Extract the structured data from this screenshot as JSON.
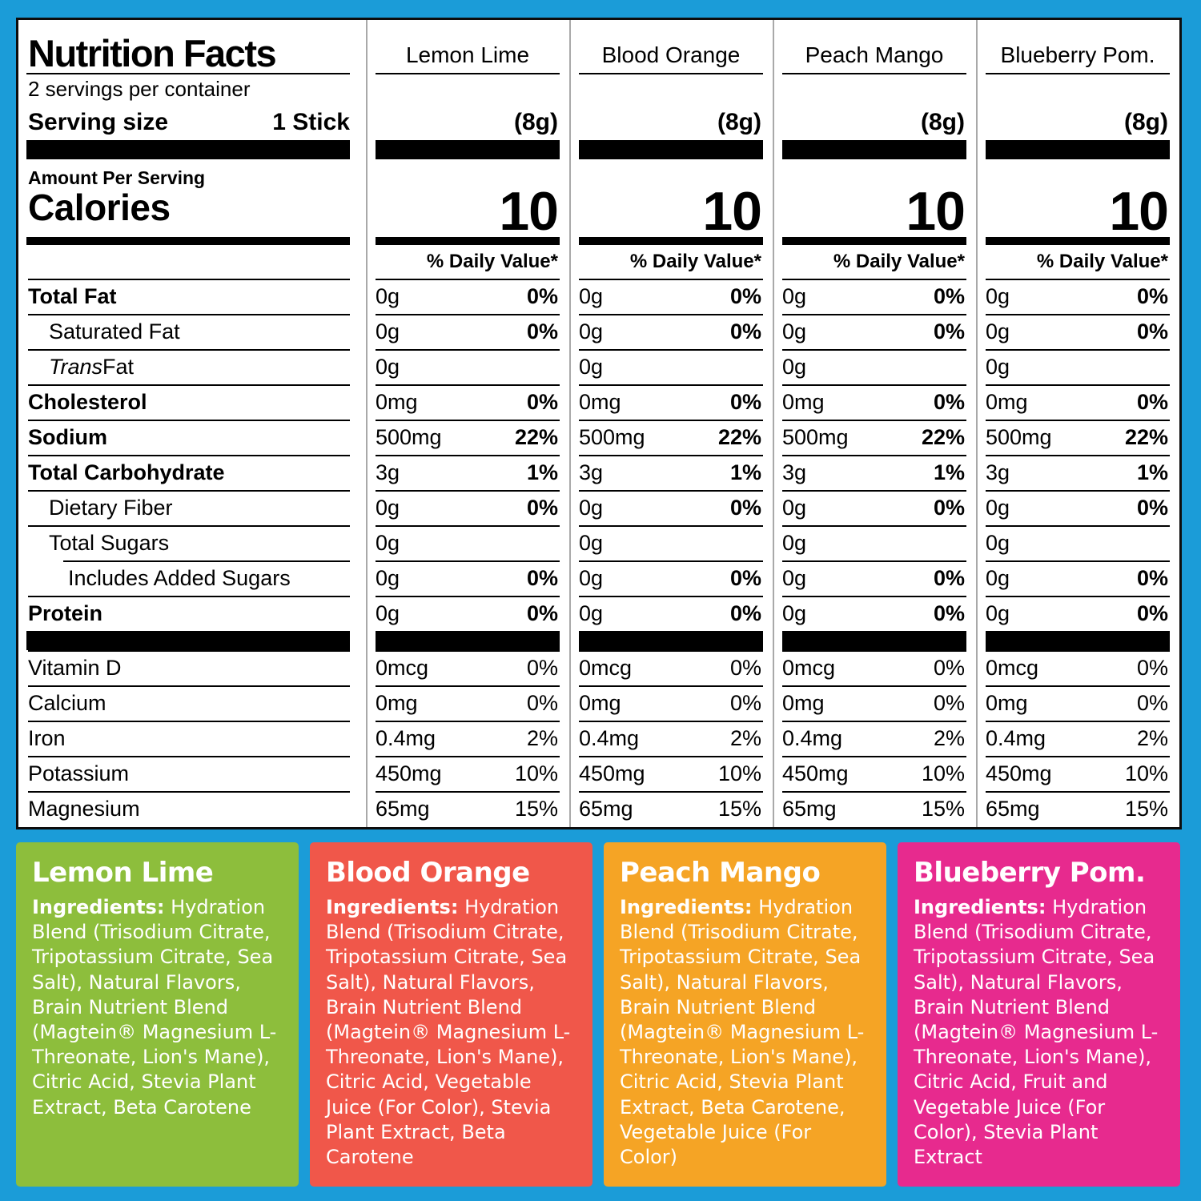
{
  "frame_color": "#1B9CD8",
  "nutrition": {
    "title": "Nutrition Facts",
    "servings_per_container": "2 servings per container",
    "serving_size_label": "Serving size",
    "serving_size_value": "1 Stick",
    "amount_per_serving": "Amount Per Serving",
    "calories_label": "Calories",
    "daily_value_header": "% Daily Value*",
    "columns": [
      {
        "flavor": "Lemon Lime",
        "serving_weight": "(8g)",
        "calories": "10"
      },
      {
        "flavor": "Blood Orange",
        "serving_weight": "(8g)",
        "calories": "10"
      },
      {
        "flavor": "Peach Mango",
        "serving_weight": "(8g)",
        "calories": "10"
      },
      {
        "flavor": "Blueberry Pom.",
        "serving_weight": "(8g)",
        "calories": "10"
      }
    ],
    "rows": [
      {
        "label": "Total Fat",
        "bold": true,
        "indent": 0,
        "amount": "0g",
        "dv": "0%"
      },
      {
        "label": "Saturated Fat",
        "bold": false,
        "indent": 1,
        "amount": "0g",
        "dv": "0%"
      },
      {
        "label": "Trans Fat",
        "bold": false,
        "indent": 1,
        "italic_word": "Trans",
        "amount": "0g",
        "dv": ""
      },
      {
        "label": "Cholesterol",
        "bold": true,
        "indent": 0,
        "amount": "0mg",
        "dv": "0%"
      },
      {
        "label": "Sodium",
        "bold": true,
        "indent": 0,
        "amount": "500mg",
        "dv": "22%"
      },
      {
        "label": "Total Carbohydrate",
        "bold": true,
        "indent": 0,
        "amount": "3g",
        "dv": "1%"
      },
      {
        "label": "Dietary Fiber",
        "bold": false,
        "indent": 1,
        "amount": "0g",
        "dv": "0%"
      },
      {
        "label": "Total Sugars",
        "bold": false,
        "indent": 1,
        "amount": "0g",
        "dv": ""
      },
      {
        "label": "Includes Added Sugars",
        "bold": false,
        "indent": 2,
        "line_indent": true,
        "amount": "0g",
        "dv": "0%"
      },
      {
        "label": "Protein",
        "bold": true,
        "indent": 0,
        "amount": "0g",
        "dv": "0%"
      }
    ],
    "vitamins": [
      {
        "label": "Vitamin D",
        "amount": "0mcg",
        "dv": "0%"
      },
      {
        "label": "Calcium",
        "amount": "0mg",
        "dv": "0%"
      },
      {
        "label": "Iron",
        "amount": "0.4mg",
        "dv": "2%"
      },
      {
        "label": "Potassium",
        "amount": "450mg",
        "dv": "10%"
      },
      {
        "label": "Magnesium",
        "amount": "65mg",
        "dv": "15%"
      }
    ]
  },
  "panels": [
    {
      "name": "Lemon Lime",
      "color": "#8DBE3C",
      "ingredients_label": "Ingredients:",
      "ingredients": "Hydration Blend (Trisodium Citrate, Tripotassium Citrate, Sea Salt), Natural Flavors, Brain Nutrient Blend (Magtein® Magnesium L-Threonate, Lion's Mane), Citric Acid, Stevia Plant Extract, Beta Carotene"
    },
    {
      "name": "Blood Orange",
      "color": "#F0574A",
      "ingredients_label": "Ingredients:",
      "ingredients": "Hydration Blend (Trisodium Citrate, Tripotassium Citrate, Sea Salt), Natural Flavors, Brain Nutrient Blend (Magtein® Magnesium L-Threonate, Lion's Mane), Citric Acid, Vegetable Juice (For Color), Stevia Plant Extract, Beta Carotene"
    },
    {
      "name": "Peach Mango",
      "color": "#F5A425",
      "ingredients_label": "Ingredients:",
      "ingredients": "Hydration Blend (Trisodium Citrate, Tripotassium Citrate, Sea Salt), Natural Flavors, Brain Nutrient Blend (Magtein® Magnesium L-Threonate, Lion's Mane), Citric Acid, Stevia Plant Extract, Beta Carotene, Vegetable Juice (For Color)"
    },
    {
      "name": "Blueberry Pom.",
      "color": "#E72A8E",
      "ingredients_label": "Ingredients:",
      "ingredients": "Hydration Blend (Trisodium Citrate, Tripotassium Citrate, Sea Salt), Natural Flavors, Brain Nutrient Blend (Magtein® Magnesium L-Threonate, Lion's Mane), Citric Acid, Fruit and Vegetable Juice (For Color), Stevia Plant Extract"
    }
  ]
}
